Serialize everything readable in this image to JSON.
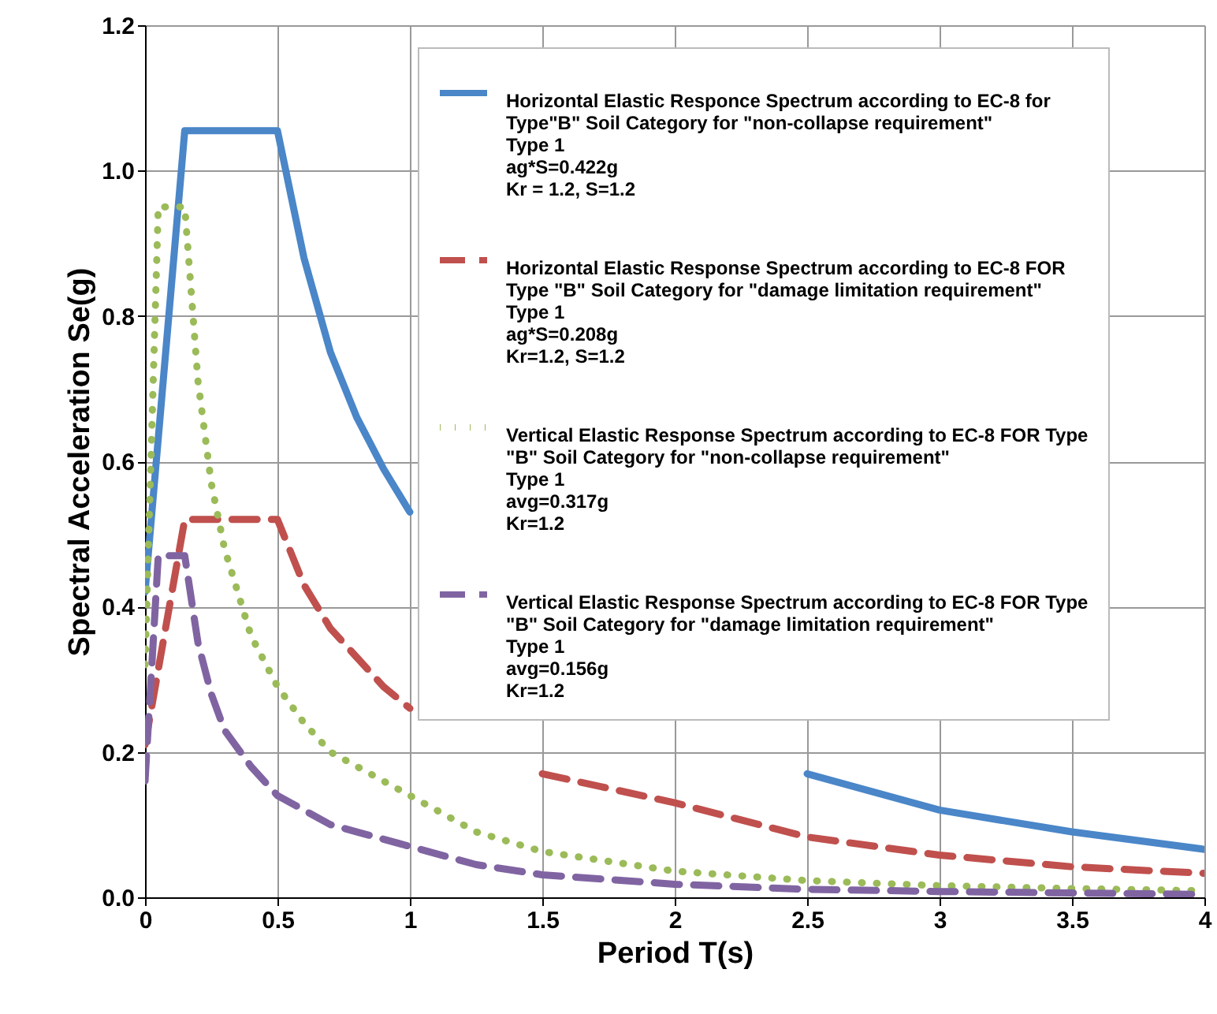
{
  "chart_data": {
    "type": "line",
    "xlabel": "Period T(s)",
    "ylabel": "Spectral Acceleration Se(g)",
    "xlim": [
      0,
      4
    ],
    "ylim": [
      0,
      1.2
    ],
    "xticks": [
      0,
      0.5,
      1,
      1.5,
      2,
      2.5,
      3,
      3.5,
      4
    ],
    "yticks": [
      {
        "value": 0,
        "label": "0.0"
      },
      {
        "value": 0.2,
        "label": "0.2"
      },
      {
        "value": 0.4,
        "label": "0.4"
      },
      {
        "value": 0.6,
        "label": "0.6"
      },
      {
        "value": 0.8,
        "label": "0.8"
      },
      {
        "value": 1,
        "label": "1.0"
      },
      {
        "value": 1.2,
        "label": "1.2"
      }
    ],
    "grid": true,
    "legend": "top right",
    "marker": "none",
    "series": [
      {
        "name": "Horizontal Elastic Responce Spectrum according to EC-8 for\nType\"B\" Soil Category for \"non-collapse  requirement\"\nType 1\nag*S=0.422g\nKr = 1.2, S=1.2",
        "color": "#4a86c8",
        "line_style": "solid",
        "x": [
          0,
          0.15,
          0.5,
          0.6,
          0.7,
          0.8,
          0.9,
          1,
          1.25,
          1.5,
          1.75,
          2,
          2.5,
          3,
          3.5,
          4
        ],
        "values": [
          0.42,
          1.055,
          1.055,
          0.88,
          0.75,
          0.66,
          0.59,
          0.53,
          null,
          null,
          null,
          null,
          0.17,
          0.12,
          0.09,
          0.066
        ]
      },
      {
        "name": "Horizontal Elastic Response Spectrum according to EC-8 FOR\nType \"B\" Soil Category for \"damage limitation requirement\"\nType 1\nag*S=0.208g\nKr=1.2, S=1.2",
        "color": "#c0504d",
        "line_style": "dashed",
        "x": [
          0,
          0.15,
          0.5,
          0.6,
          0.7,
          0.8,
          0.9,
          1,
          1.25,
          1.5,
          1.75,
          2,
          2.5,
          3,
          3.5,
          4
        ],
        "values": [
          0.21,
          0.52,
          0.52,
          0.43,
          0.37,
          0.33,
          0.29,
          0.26,
          null,
          0.17,
          0.15,
          0.13,
          0.083,
          0.058,
          0.042,
          0.033
        ]
      },
      {
        "name": "Vertical Elastic Response Spectrum according to EC-8 FOR Type\n\"B\" Soil Category for \"non-collapse requirement\"\nType 1\navg=0.317g\nKr=1.2",
        "color": "#9bbb59",
        "line_style": "dotted",
        "x": [
          0,
          0.05,
          0.15,
          0.2,
          0.25,
          0.3,
          0.4,
          0.5,
          0.6,
          0.7,
          0.8,
          1,
          1.25,
          1.5,
          2,
          2.5,
          3,
          3.5,
          4
        ],
        "values": [
          0.32,
          0.95,
          0.95,
          0.71,
          0.57,
          0.48,
          0.36,
          0.29,
          0.24,
          0.2,
          0.18,
          0.14,
          0.09,
          0.063,
          0.036,
          0.023,
          0.016,
          0.012,
          0.009
        ]
      },
      {
        "name": "Vertical Elastic Response Spectrum according to EC-8 FOR Type\n\"B\" Soil Category for \"damage limitation requirement\"\nType 1\navg=0.156g\nKr=1.2",
        "color": "#8064a2",
        "line_style": "dashed",
        "x": [
          0,
          0.05,
          0.15,
          0.2,
          0.25,
          0.3,
          0.4,
          0.5,
          0.6,
          0.7,
          0.8,
          1,
          1.25,
          1.5,
          2,
          2.5,
          3,
          3.5,
          4
        ],
        "values": [
          0.16,
          0.47,
          0.47,
          0.35,
          0.28,
          0.23,
          0.18,
          0.14,
          0.12,
          0.1,
          0.09,
          0.07,
          0.045,
          0.031,
          0.018,
          0.011,
          0.008,
          0.006,
          0.004
        ]
      }
    ]
  }
}
